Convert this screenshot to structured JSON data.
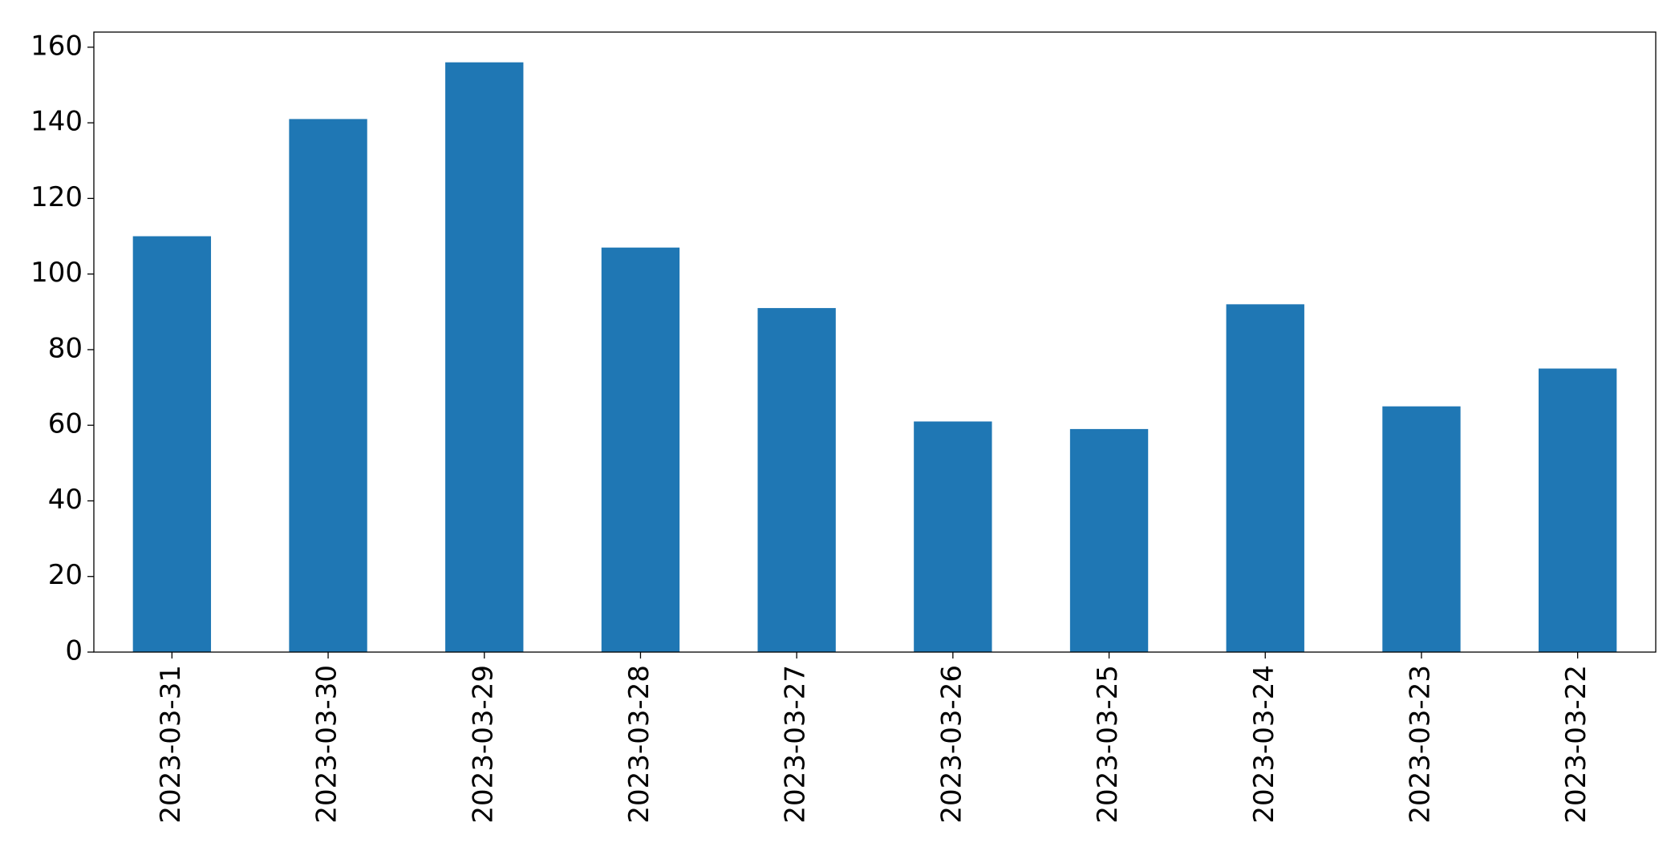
{
  "chart_data": {
    "type": "bar",
    "categories": [
      "2023-03-31",
      "2023-03-30",
      "2023-03-29",
      "2023-03-28",
      "2023-03-27",
      "2023-03-26",
      "2023-03-25",
      "2023-03-24",
      "2023-03-23",
      "2023-03-22"
    ],
    "values": [
      110,
      141,
      156,
      107,
      91,
      61,
      59,
      92,
      65,
      75
    ],
    "color": "#1f77b4",
    "ylim": [
      0,
      164
    ],
    "yticks": [
      0,
      20,
      40,
      60,
      80,
      100,
      120,
      140,
      160
    ],
    "grid": false
  }
}
